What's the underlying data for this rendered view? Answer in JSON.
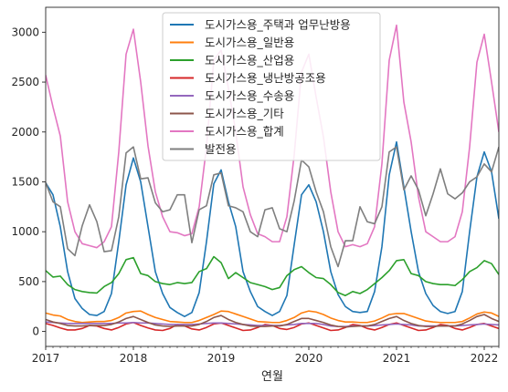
{
  "chart_data": {
    "type": "line",
    "xlabel": "연월",
    "ylabel": "",
    "ylim": [
      -150,
      3250
    ],
    "xlim": [
      "2017-01",
      "2022-03"
    ],
    "grid": false,
    "legend_position": "top-center",
    "x_ticks": [
      {
        "date": "2017-01",
        "label": "2017"
      },
      {
        "date": "2018-01",
        "label": "2018"
      },
      {
        "date": "2019-01",
        "label": "2019"
      },
      {
        "date": "2020-01",
        "label": "2020"
      },
      {
        "date": "2021-01",
        "label": "2021"
      },
      {
        "date": "2022-01",
        "label": "2022"
      }
    ],
    "y_ticks": [
      0,
      500,
      1000,
      1500,
      2000,
      2500,
      3000
    ],
    "x": [
      "2017-01",
      "2017-02",
      "2017-03",
      "2017-04",
      "2017-05",
      "2017-06",
      "2017-07",
      "2017-08",
      "2017-09",
      "2017-10",
      "2017-11",
      "2017-12",
      "2018-01",
      "2018-02",
      "2018-03",
      "2018-04",
      "2018-05",
      "2018-06",
      "2018-07",
      "2018-08",
      "2018-09",
      "2018-10",
      "2018-11",
      "2018-12",
      "2019-01",
      "2019-02",
      "2019-03",
      "2019-04",
      "2019-05",
      "2019-06",
      "2019-07",
      "2019-08",
      "2019-09",
      "2019-10",
      "2019-11",
      "2019-12",
      "2020-01",
      "2020-02",
      "2020-03",
      "2020-04",
      "2020-05",
      "2020-06",
      "2020-07",
      "2020-08",
      "2020-09",
      "2020-10",
      "2020-11",
      "2020-12",
      "2021-01",
      "2021-02",
      "2021-03",
      "2021-04",
      "2021-05",
      "2021-06",
      "2021-07",
      "2021-08",
      "2021-09",
      "2021-10",
      "2021-11",
      "2021-12",
      "2022-01",
      "2022-02",
      "2022-03"
    ],
    "series": [
      {
        "name": "도시가스용_주택과 업무난방용",
        "color": "#1f77b4",
        "values": [
          1490,
          1370,
          1050,
          600,
          330,
          230,
          170,
          160,
          200,
          380,
          900,
          1470,
          1740,
          1500,
          1050,
          600,
          380,
          240,
          190,
          150,
          190,
          390,
          900,
          1480,
          1620,
          1300,
          1050,
          600,
          400,
          250,
          200,
          160,
          200,
          360,
          870,
          1370,
          1470,
          1300,
          1000,
          600,
          370,
          250,
          200,
          190,
          200,
          400,
          850,
          1570,
          1900,
          1450,
          1000,
          600,
          380,
          260,
          200,
          180,
          200,
          400,
          1000,
          1550,
          1800,
          1600,
          1130
        ]
      },
      {
        "name": "도시가스용_일반용",
        "color": "#ff7f0e",
        "values": [
          185,
          165,
          155,
          120,
          100,
          90,
          95,
          100,
          100,
          110,
          140,
          185,
          200,
          205,
          170,
          140,
          120,
          100,
          95,
          90,
          90,
          110,
          140,
          170,
          205,
          200,
          175,
          150,
          125,
          100,
          95,
          90,
          90,
          110,
          140,
          185,
          205,
          195,
          170,
          135,
          110,
          95,
          95,
          90,
          90,
          105,
          135,
          170,
          180,
          180,
          155,
          130,
          105,
          95,
          90,
          90,
          90,
          100,
          135,
          175,
          195,
          185,
          150
        ]
      },
      {
        "name": "도시가스용_산업용",
        "color": "#2ca02c",
        "values": [
          610,
          545,
          555,
          470,
          420,
          400,
          390,
          385,
          450,
          490,
          580,
          720,
          740,
          580,
          560,
          500,
          480,
          470,
          490,
          480,
          490,
          600,
          630,
          750,
          690,
          530,
          590,
          540,
          490,
          470,
          450,
          420,
          440,
          560,
          620,
          650,
          590,
          540,
          530,
          470,
          390,
          360,
          400,
          380,
          420,
          480,
          540,
          610,
          710,
          720,
          580,
          560,
          500,
          480,
          470,
          470,
          460,
          520,
          600,
          640,
          710,
          680,
          570
        ]
      },
      {
        "name": "도시가스용_냉난방공조용",
        "color": "#d62728",
        "values": [
          80,
          60,
          35,
          15,
          15,
          30,
          60,
          55,
          30,
          15,
          40,
          75,
          90,
          60,
          35,
          15,
          10,
          30,
          70,
          55,
          25,
          15,
          40,
          75,
          85,
          60,
          35,
          10,
          15,
          40,
          70,
          60,
          30,
          20,
          40,
          75,
          85,
          60,
          35,
          10,
          15,
          40,
          70,
          60,
          30,
          15,
          40,
          70,
          85,
          60,
          35,
          10,
          15,
          40,
          70,
          60,
          30,
          15,
          40,
          70,
          80,
          55,
          30
        ]
      },
      {
        "name": "도시가스용_수송용",
        "color": "#9467bd",
        "values": [
          95,
          90,
          85,
          80,
          80,
          80,
          80,
          80,
          80,
          80,
          85,
          85,
          90,
          85,
          85,
          80,
          75,
          70,
          70,
          70,
          70,
          75,
          80,
          85,
          85,
          80,
          75,
          70,
          65,
          60,
          60,
          60,
          60,
          65,
          70,
          80,
          80,
          80,
          70,
          55,
          50,
          50,
          55,
          55,
          55,
          60,
          65,
          70,
          75,
          70,
          65,
          55,
          55,
          55,
          55,
          55,
          55,
          60,
          65,
          70,
          75,
          70,
          65
        ]
      },
      {
        "name": "도시가스용_기타",
        "color": "#8c564b",
        "values": [
          120,
          95,
          80,
          60,
          55,
          55,
          60,
          60,
          60,
          70,
          95,
          130,
          150,
          120,
          90,
          65,
          55,
          50,
          55,
          55,
          55,
          70,
          100,
          140,
          160,
          120,
          90,
          70,
          55,
          50,
          50,
          55,
          55,
          70,
          100,
          130,
          130,
          110,
          90,
          65,
          50,
          45,
          50,
          55,
          55,
          70,
          100,
          130,
          150,
          110,
          80,
          60,
          50,
          50,
          55,
          55,
          55,
          75,
          110,
          150,
          170,
          130,
          100
        ]
      },
      {
        "name": "도시가스용_합계",
        "color": "#e377c2",
        "values": [
          2570,
          2250,
          1960,
          1300,
          1000,
          880,
          860,
          840,
          900,
          1050,
          1800,
          2780,
          3030,
          2500,
          1860,
          1400,
          1150,
          1000,
          990,
          960,
          980,
          1250,
          1850,
          2720,
          2820,
          2440,
          2000,
          1450,
          1170,
          980,
          950,
          900,
          900,
          1150,
          1770,
          2600,
          2780,
          2350,
          1950,
          1400,
          1000,
          850,
          870,
          850,
          880,
          1050,
          1680,
          2720,
          3070,
          2300,
          1900,
          1350,
          1000,
          950,
          900,
          900,
          950,
          1200,
          1850,
          2700,
          2980,
          2500,
          2000
        ]
      },
      {
        "name": "발전용",
        "color": "#7f7f7f",
        "values": [
          1490,
          1300,
          1250,
          830,
          760,
          1060,
          1270,
          1100,
          800,
          810,
          1150,
          1790,
          1850,
          1530,
          1540,
          1290,
          1200,
          1220,
          1370,
          1370,
          890,
          1220,
          1260,
          1570,
          1590,
          1260,
          1240,
          1200,
          1000,
          950,
          1220,
          1240,
          1030,
          1000,
          1310,
          1720,
          1650,
          1400,
          1200,
          850,
          650,
          910,
          910,
          1250,
          1100,
          1080,
          1250,
          1800,
          1850,
          1420,
          1560,
          1420,
          1160,
          1380,
          1630,
          1380,
          1330,
          1390,
          1500,
          1550,
          1680,
          1600,
          1850
        ]
      }
    ]
  }
}
